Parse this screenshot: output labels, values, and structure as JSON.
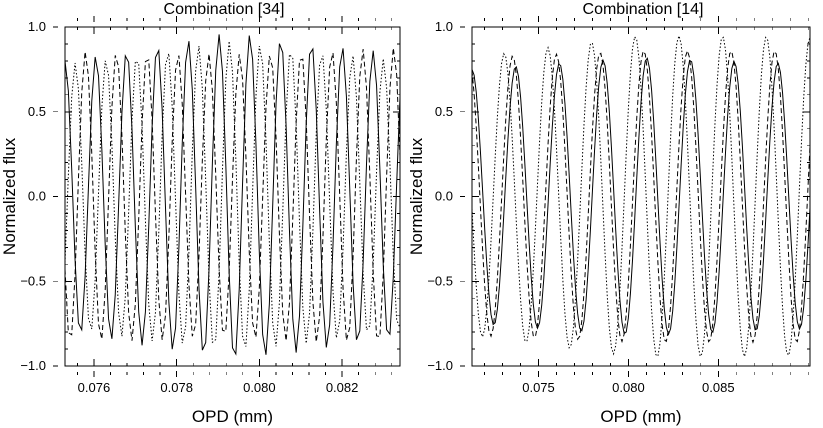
{
  "chart_data": [
    {
      "type": "line",
      "title": "Combination [34]",
      "xlabel": "OPD (mm)",
      "ylabel": "Normalized flux",
      "xlim": [
        0.0753,
        0.0834
      ],
      "ylim": [
        -1.0,
        1.0
      ],
      "xticks": [
        0.076,
        0.078,
        0.08,
        0.082
      ],
      "xtick_labels": [
        "0.076",
        "0.078",
        "0.080",
        "0.082"
      ],
      "yticks": [
        -1.0,
        -0.5,
        0.0,
        0.5,
        1.0
      ],
      "ytick_labels": [
        "−1.0",
        "−0.5",
        "0.0",
        "0.5",
        "1.0"
      ],
      "grid": false,
      "series": [
        {
          "style": "solid",
          "period_mm": 0.000745,
          "phase_deg": 0,
          "amplitude": [
            0.8,
            0.97,
            0.84
          ],
          "n_points": 100
        },
        {
          "style": "dashed",
          "period_mm": 0.000745,
          "phase_deg": 120,
          "amplitude": [
            0.86,
            0.84,
            0.88
          ],
          "n_points": 100
        },
        {
          "style": "dotted",
          "period_mm": 0.000745,
          "phase_deg": 240,
          "amplitude": [
            0.78,
            0.92,
            0.8
          ],
          "n_points": 100
        }
      ]
    },
    {
      "type": "line",
      "title": "Combination [14]",
      "xlabel": "OPD (mm)",
      "ylabel": "Normalized flux",
      "xlim": [
        0.0713,
        0.0901
      ],
      "ylim": [
        -1.0,
        1.0
      ],
      "xticks": [
        0.075,
        0.08,
        0.085
      ],
      "xtick_labels": [
        "0.075",
        "0.080",
        "0.085"
      ],
      "yticks": [
        -1.0,
        -0.5,
        0.0,
        0.5,
        1.0
      ],
      "ytick_labels": [
        "−1.0",
        "−0.5",
        "0.0",
        "0.5",
        "1.0"
      ],
      "grid": false,
      "series": [
        {
          "style": "solid",
          "period_mm": 0.00243,
          "phase_deg": 0,
          "amplitude": [
            0.75,
            0.82,
            0.78
          ],
          "n_points": 160
        },
        {
          "style": "dashed",
          "period_mm": 0.00243,
          "phase_deg": 25,
          "amplitude": [
            0.82,
            0.86,
            0.86
          ],
          "n_points": 160
        },
        {
          "style": "dotted",
          "period_mm": 0.00243,
          "phase_deg": 95,
          "amplitude": [
            0.82,
            0.95,
            0.94
          ],
          "n_points": 160
        }
      ]
    }
  ]
}
